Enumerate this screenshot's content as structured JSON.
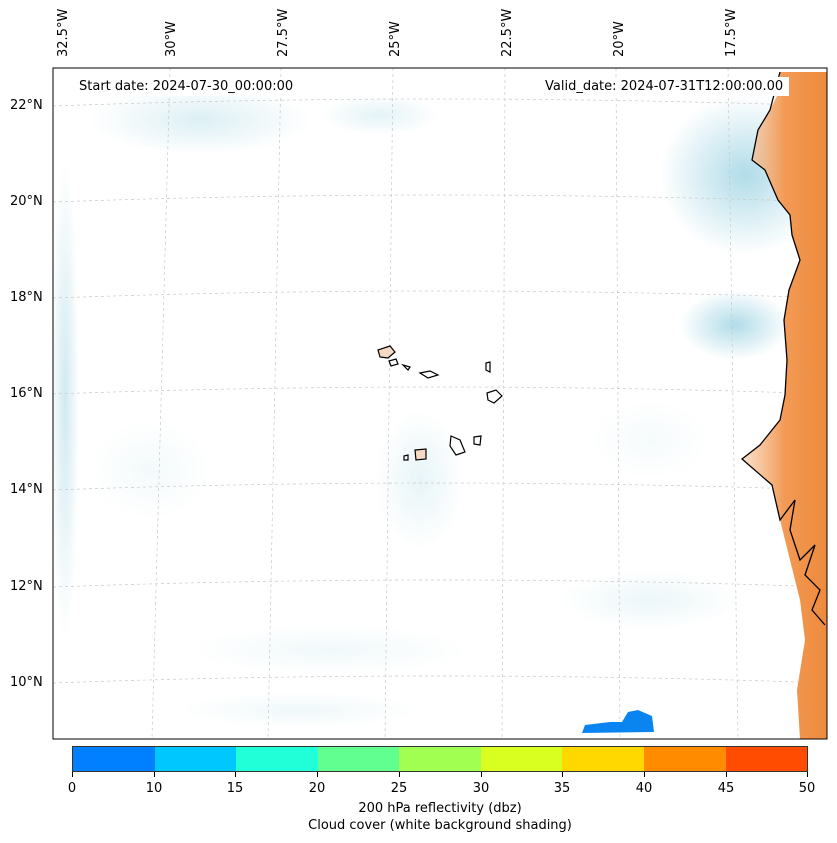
{
  "map": {
    "start_label": "Start date: 2024-07-30_00:00:00",
    "valid_label": "Valid_date: 2024-07-31T12:00:00.00",
    "lon_labels": [
      "32.5°W",
      "30°W",
      "27.5°W",
      "25°W",
      "22.5°W",
      "20°W",
      "17.5°W"
    ],
    "lat_labels": [
      "22°N",
      "20°N",
      "18°N",
      "16°N",
      "14°N",
      "12°N",
      "10°N"
    ],
    "lon_min": -33.0,
    "lon_max": -15.8,
    "lat_min": 8.9,
    "lat_max": 22.8,
    "colors": {
      "cloud": "#a8d8e6",
      "land_warm": "#f0873a",
      "island_fill": "#f6d9c4",
      "radar_blue": "#0a84f0"
    }
  },
  "colorbar": {
    "ticks": [
      "0",
      "10",
      "15",
      "20",
      "25",
      "30",
      "35",
      "40",
      "45",
      "50"
    ],
    "colors": [
      "#0080ff",
      "#00c8ff",
      "#20ffd8",
      "#60ff90",
      "#a0ff50",
      "#d8ff20",
      "#ffd800",
      "#ff8c00",
      "#ff4c00"
    ],
    "label_line1": "200 hPa reflectivity (dbz)",
    "label_line2": "Cloud cover (white background shading)"
  }
}
